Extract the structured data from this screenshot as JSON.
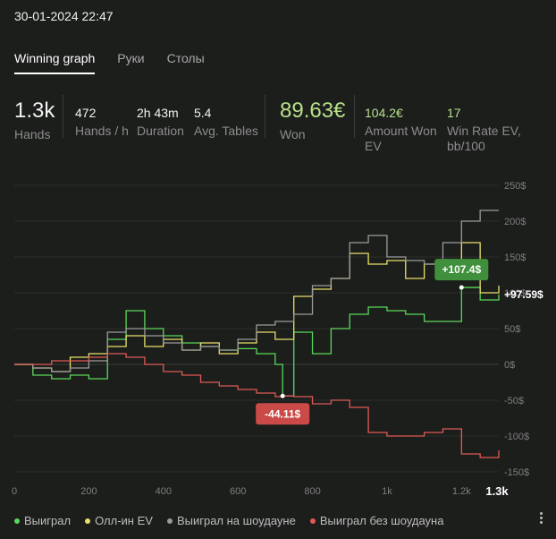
{
  "header": {
    "datetime": "30-01-2024 22:47"
  },
  "tabs": [
    {
      "label": "Winning graph",
      "active": true
    },
    {
      "label": "Руки",
      "active": false
    },
    {
      "label": "Столы",
      "active": false
    }
  ],
  "stats": {
    "hands": {
      "value": "1.3k",
      "label": "Hands"
    },
    "hands_per_h": {
      "value": "472",
      "label": "Hands / h"
    },
    "duration": {
      "value": "2h 43m",
      "label": "Duration"
    },
    "avg_tables": {
      "value": "5.4",
      "label": "Avg. Tables"
    },
    "won": {
      "value": "89.63€",
      "label": "Won"
    },
    "amount_won_ev": {
      "value": "104.2€",
      "label1": "Amount Won",
      "label2": "EV"
    },
    "win_rate_ev": {
      "value": "17",
      "label1": "Win Rate EV,",
      "label2": "bb/100"
    }
  },
  "legend": [
    {
      "label": "Выиграл",
      "color": "#58d85a"
    },
    {
      "label": "Олл-ин EV",
      "color": "#e8e06a"
    },
    {
      "label": "Выиграл на шоудауне",
      "color": "#9a9a9a"
    },
    {
      "label": "Выиграл без шоудауна",
      "color": "#e05a55"
    }
  ],
  "chart_data": {
    "type": "line",
    "x_ticks": [
      "0",
      "200",
      "400",
      "600",
      "800",
      "1k",
      "1.2k",
      "1.3k"
    ],
    "y_ticks": [
      "250$",
      "200$",
      "150$",
      "100$",
      "50$",
      "0$",
      "-50$",
      "-100$",
      "-150$"
    ],
    "xlim": [
      0,
      1300
    ],
    "ylim": [
      -150,
      250
    ],
    "series": [
      {
        "name": "Выиграл",
        "color": "#58d85a",
        "x": [
          0,
          50,
          100,
          150,
          200,
          250,
          300,
          350,
          400,
          450,
          500,
          550,
          600,
          650,
          700,
          720,
          750,
          800,
          850,
          900,
          950,
          1000,
          1050,
          1100,
          1150,
          1200,
          1250,
          1300
        ],
        "values": [
          0,
          -15,
          -20,
          -15,
          -20,
          35,
          75,
          50,
          40,
          30,
          25,
          20,
          22,
          15,
          0,
          -44.11,
          45,
          15,
          50,
          70,
          80,
          75,
          70,
          60,
          60,
          107.4,
          90,
          97.59
        ]
      },
      {
        "name": "Олл-ин EV",
        "color": "#e8e06a",
        "x": [
          0,
          50,
          100,
          150,
          200,
          250,
          300,
          350,
          400,
          450,
          500,
          550,
          600,
          650,
          700,
          750,
          800,
          850,
          900,
          950,
          1000,
          1050,
          1100,
          1150,
          1200,
          1250,
          1300
        ],
        "values": [
          0,
          -5,
          -10,
          10,
          15,
          25,
          40,
          25,
          35,
          20,
          30,
          15,
          30,
          45,
          35,
          95,
          105,
          120,
          155,
          140,
          145,
          120,
          140,
          135,
          170,
          100,
          110
        ]
      },
      {
        "name": "Выиграл на шоудауне",
        "color": "#9a9a9a",
        "x": [
          0,
          50,
          100,
          150,
          200,
          250,
          300,
          350,
          400,
          450,
          500,
          550,
          600,
          650,
          700,
          750,
          800,
          850,
          900,
          950,
          1000,
          1050,
          1100,
          1150,
          1200,
          1250,
          1300
        ],
        "values": [
          0,
          -5,
          -10,
          -5,
          5,
          45,
          50,
          40,
          30,
          20,
          25,
          20,
          35,
          55,
          60,
          70,
          110,
          120,
          170,
          180,
          150,
          145,
          140,
          170,
          200,
          215,
          215
        ]
      },
      {
        "name": "Выиграл без шоудауна",
        "color": "#e05a55",
        "x": [
          0,
          50,
          100,
          150,
          200,
          250,
          300,
          350,
          400,
          450,
          500,
          550,
          600,
          650,
          700,
          720,
          750,
          800,
          850,
          900,
          950,
          1000,
          1050,
          1100,
          1150,
          1200,
          1250,
          1300
        ],
        "values": [
          0,
          0,
          5,
          5,
          10,
          15,
          10,
          0,
          -10,
          -15,
          -25,
          -30,
          -35,
          -40,
          -45,
          -44.11,
          -45,
          -55,
          -50,
          -60,
          -95,
          -100,
          -100,
          -95,
          -90,
          -125,
          -130,
          -120
        ]
      }
    ],
    "annotations": [
      {
        "text": "-44.11$",
        "x": 720,
        "y": -44.11,
        "color": "#c94a46"
      },
      {
        "text": "+107.4$",
        "x": 1200,
        "y": 107.4,
        "color": "#3f8f3c"
      }
    ],
    "end_label": "+97.59$",
    "end_x_label": "1.3k"
  }
}
